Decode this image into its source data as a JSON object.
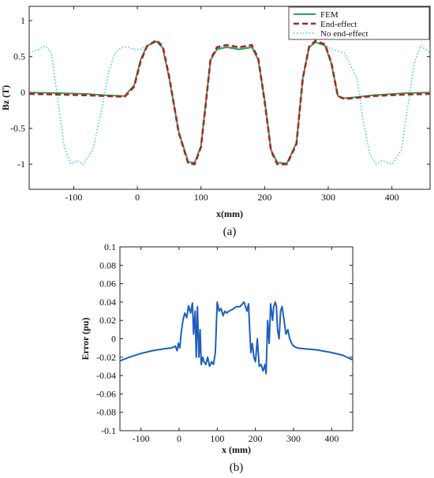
{
  "chart_data": [
    {
      "panel": "a",
      "caption": "(a)",
      "type": "line",
      "xlabel": "x(mm)",
      "ylabel": "Bz (T)",
      "xlim": [
        -170,
        460
      ],
      "ylim": [
        -1.35,
        1.2
      ],
      "xticks": [
        -100,
        0,
        100,
        200,
        300,
        400
      ],
      "yticks": [
        -1,
        -0.5,
        0,
        0.5,
        1
      ],
      "grid": false,
      "legend_position": "top-right",
      "series": [
        {
          "name": "FEM",
          "color": "#2ca05a",
          "style": "solid",
          "x": [
            -170,
            -120,
            -80,
            -50,
            -20,
            -5,
            5,
            15,
            30,
            40,
            50,
            65,
            80,
            90,
            100,
            108,
            115,
            125,
            140,
            160,
            180,
            190,
            200,
            210,
            220,
            235,
            250,
            260,
            270,
            280,
            295,
            305,
            315,
            325,
            340,
            370,
            420,
            460
          ],
          "y": [
            0.0,
            -0.01,
            -0.02,
            -0.04,
            -0.05,
            0.1,
            0.45,
            0.65,
            0.71,
            0.62,
            0.2,
            -0.55,
            -0.97,
            -0.98,
            -0.75,
            -0.1,
            0.45,
            0.6,
            0.63,
            0.6,
            0.63,
            0.45,
            -0.1,
            -0.8,
            -0.98,
            -0.99,
            -0.7,
            0.2,
            0.63,
            0.7,
            0.65,
            0.4,
            -0.05,
            -0.08,
            -0.07,
            -0.04,
            -0.01,
            0.0
          ]
        },
        {
          "name": "End-effect",
          "color": "#b22222",
          "style": "dashed",
          "x": [
            -170,
            -120,
            -80,
            -50,
            -20,
            -5,
            5,
            15,
            30,
            40,
            50,
            65,
            80,
            90,
            100,
            108,
            115,
            125,
            140,
            160,
            180,
            190,
            200,
            210,
            220,
            235,
            250,
            260,
            270,
            280,
            295,
            305,
            315,
            325,
            340,
            370,
            420,
            460
          ],
          "y": [
            -0.02,
            -0.03,
            -0.04,
            -0.05,
            -0.06,
            0.08,
            0.43,
            0.64,
            0.73,
            0.64,
            0.22,
            -0.56,
            -0.99,
            -1.0,
            -0.76,
            -0.12,
            0.46,
            0.63,
            0.66,
            0.63,
            0.66,
            0.47,
            -0.12,
            -0.81,
            -1.0,
            -1.0,
            -0.72,
            0.19,
            0.64,
            0.72,
            0.67,
            0.41,
            -0.05,
            -0.09,
            -0.08,
            -0.05,
            -0.03,
            -0.02
          ]
        },
        {
          "name": "No end-effect",
          "color": "#40c8e0",
          "style": "dotted",
          "x": [
            -170,
            -155,
            -145,
            -135,
            -125,
            -115,
            -105,
            -95,
            -85,
            -70,
            -55,
            -45,
            -35,
            -25,
            -15,
            -5,
            5,
            15,
            30,
            40,
            50,
            65,
            80,
            90,
            100,
            108,
            115,
            125,
            140,
            160,
            180,
            190,
            200,
            210,
            220,
            235,
            250,
            260,
            270,
            280,
            295,
            305,
            315,
            325,
            345,
            355,
            365,
            375,
            385,
            400,
            415,
            425,
            435,
            445,
            460
          ],
          "y": [
            0.55,
            0.6,
            0.65,
            0.55,
            -0.1,
            -0.75,
            -1.0,
            -0.95,
            -1.0,
            -0.8,
            -0.2,
            0.3,
            0.55,
            0.63,
            0.63,
            0.6,
            0.6,
            0.65,
            0.72,
            0.62,
            0.2,
            -0.55,
            -0.98,
            -0.99,
            -0.75,
            -0.1,
            0.45,
            0.62,
            0.65,
            0.62,
            0.65,
            0.46,
            -0.1,
            -0.8,
            -0.97,
            -0.98,
            -0.7,
            0.2,
            0.63,
            0.7,
            0.66,
            0.6,
            0.58,
            0.55,
            0.2,
            -0.4,
            -0.85,
            -1.0,
            -0.95,
            -1.0,
            -0.8,
            -0.2,
            0.4,
            0.65,
            0.55
          ]
        }
      ]
    },
    {
      "panel": "b",
      "caption": "(b)",
      "type": "line",
      "xlabel": "x  (mm)",
      "ylabel": "Error  (pu)",
      "xlim": [
        -155,
        455
      ],
      "ylim": [
        -0.1,
        0.1
      ],
      "xticks": [
        -100,
        0,
        100,
        200,
        300,
        400
      ],
      "yticks": [
        -0.1,
        -0.08,
        -0.06,
        -0.04,
        -0.02,
        0,
        0.02,
        0.04,
        0.06,
        0.08,
        0.1
      ],
      "grid": false,
      "series": [
        {
          "name": "",
          "color": "#1f5fbf",
          "style": "solid",
          "x": [
            -155,
            -130,
            -100,
            -70,
            -40,
            -20,
            -10,
            -5,
            -2,
            2,
            5,
            10,
            15,
            20,
            25,
            30,
            35,
            38,
            42,
            45,
            48,
            52,
            55,
            58,
            62,
            65,
            70,
            75,
            80,
            85,
            90,
            95,
            98,
            100,
            105,
            110,
            115,
            120,
            125,
            130,
            140,
            150,
            160,
            170,
            178,
            182,
            185,
            188,
            192,
            196,
            200,
            205,
            210,
            215,
            220,
            225,
            228,
            232,
            236,
            240,
            245,
            248,
            252,
            255,
            258,
            262,
            266,
            270,
            275,
            280,
            285,
            290,
            295,
            300,
            310,
            330,
            360,
            400,
            430,
            455
          ],
          "y": [
            -0.024,
            -0.02,
            -0.016,
            -0.013,
            -0.011,
            -0.01,
            -0.008,
            -0.013,
            -0.005,
            -0.01,
            0.005,
            0.02,
            0.028,
            0.023,
            0.036,
            0.028,
            0.039,
            0.005,
            0.03,
            -0.02,
            0.035,
            -0.02,
            0.01,
            -0.028,
            -0.02,
            -0.025,
            -0.028,
            -0.02,
            -0.03,
            -0.025,
            -0.028,
            -0.015,
            0.02,
            0.04,
            0.03,
            0.033,
            0.025,
            0.03,
            0.028,
            0.03,
            0.032,
            0.035,
            0.035,
            0.04,
            0.03,
            0.038,
            0.01,
            -0.015,
            -0.005,
            -0.02,
            -0.025,
            0.0,
            -0.03,
            -0.028,
            -0.035,
            -0.028,
            -0.038,
            0.02,
            -0.005,
            0.038,
            0.02,
            0.035,
            0.04,
            0.035,
            0.01,
            0.0,
            0.03,
            0.035,
            0.02,
            0.005,
            0.01,
            0.0,
            -0.005,
            -0.008,
            -0.01,
            -0.011,
            -0.012,
            -0.015,
            -0.018,
            -0.023
          ]
        }
      ]
    }
  ]
}
